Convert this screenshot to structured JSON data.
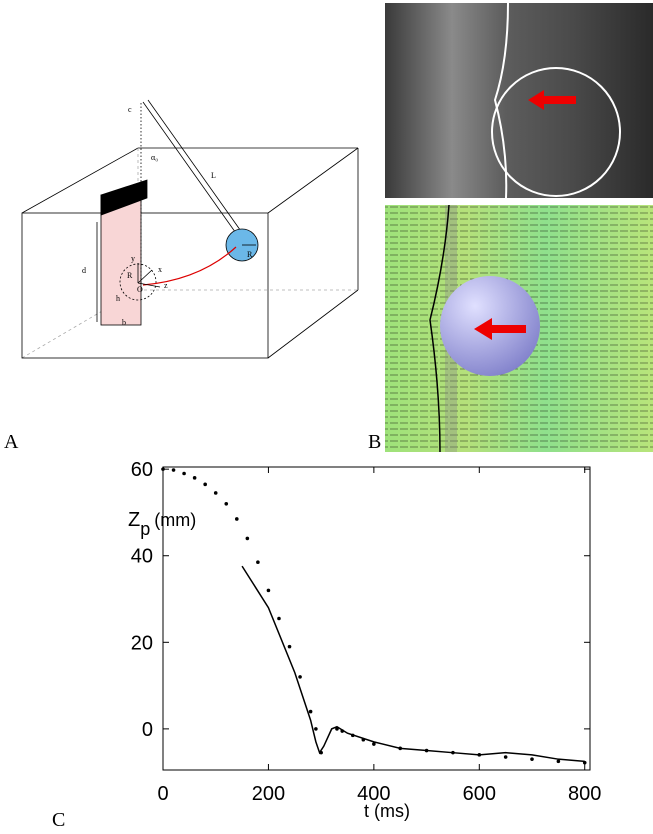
{
  "panel_labels": {
    "a": "A",
    "b": "B",
    "c": "C"
  },
  "diagram": {
    "c": "c",
    "alpha": "α₀",
    "L": "L",
    "d": "d",
    "y": "y",
    "x": "x",
    "R_plate": "R",
    "O": "O",
    "z": "z",
    "h": "h",
    "b": "b",
    "R_sphere": "R"
  },
  "chart_data": {
    "type": "line",
    "ylabel_symbol": "Z",
    "ylabel_subscript": "p",
    "ylabel_unit": "(mm)",
    "xlabel": "t (ms)",
    "xlim": [
      0,
      810
    ],
    "ylim": [
      -9.5,
      60.5
    ],
    "xticks": [
      0,
      200,
      400,
      600,
      800
    ],
    "yticks": [
      0,
      20,
      40,
      60
    ],
    "series": [
      {
        "style": "dots",
        "color": "#000000",
        "x": [
          0,
          20,
          40,
          60,
          80,
          100,
          120,
          140,
          160,
          180,
          200,
          220,
          240,
          260,
          280,
          290,
          300,
          315,
          330,
          340,
          360,
          380,
          400,
          450,
          500,
          550,
          600,
          650,
          700,
          750,
          800
        ],
        "values": [
          60,
          59.8,
          59,
          58,
          56.5,
          54.5,
          52,
          48.5,
          44,
          38.5,
          32,
          25.5,
          19,
          12,
          4,
          0,
          -5.5,
          null,
          0,
          -0.5,
          -1.5,
          -2.5,
          -3.5,
          -4.5,
          -5,
          -5.5,
          -6,
          -6.5,
          -7,
          -7.5,
          -7.8
        ]
      },
      {
        "style": "solid",
        "color": "#000000",
        "x": [
          150,
          200,
          250,
          280,
          290,
          297,
          305,
          320,
          330,
          350,
          400,
          450,
          500,
          550,
          600,
          650,
          700,
          750,
          800
        ],
        "values": [
          37.6,
          28,
          13,
          2,
          -3,
          -5.5,
          -4,
          0,
          0.5,
          -1,
          -3,
          -4.5,
          -5,
          -5.5,
          -6,
          -5.5,
          -6,
          -7,
          -7.5
        ]
      }
    ]
  }
}
